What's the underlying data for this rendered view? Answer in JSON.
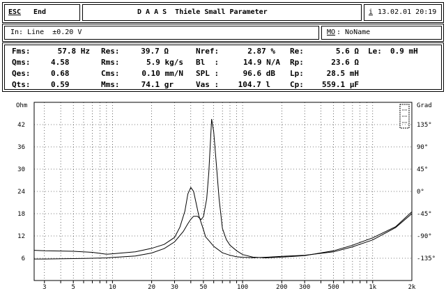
{
  "title_bar": {
    "esc_key": "ESC",
    "end_label": "End",
    "title": "D A A S  Thiele Small Parameter",
    "info_key": "i",
    "datetime": "13.02.01 20:19"
  },
  "input_bar": {
    "input_label": "In: Line  ±0.20 V",
    "mo_key": "MO",
    "mo_value": ": NoName"
  },
  "params": {
    "fms": {
      "label": "Fms:",
      "value": "57.8 Hz"
    },
    "qms": {
      "label": "Qms:",
      "value": "4.58"
    },
    "qes": {
      "label": "Qes:",
      "value": "0.68"
    },
    "qts": {
      "label": "Qts:",
      "value": "0.59"
    },
    "res": {
      "label": "Res:",
      "value": "39.7 Ω"
    },
    "rms": {
      "label": "Rms:",
      "value": "5.9 kg/s"
    },
    "cms": {
      "label": "Cms:",
      "value": "0.10 mm/N"
    },
    "mms": {
      "label": "Mms:",
      "value": "74.1 gr"
    },
    "nref": {
      "label": "Nref:",
      "value": "2.87 %"
    },
    "bl": {
      "label": "Bl  :",
      "value": "14.9 N/A"
    },
    "spl": {
      "label": "SPL :",
      "value": "96.6 dB"
    },
    "vas": {
      "label": "Vas :",
      "value": "104.7 l"
    },
    "re": {
      "label": "Re:",
      "value": "5.6 Ω"
    },
    "rp": {
      "label": "Rp:",
      "value": "23.6 Ω"
    },
    "lp": {
      "label": "Lp:",
      "value": "28.5 mH"
    },
    "cp": {
      "label": "Cp:",
      "value": "559.1 μF"
    },
    "le": {
      "label": "Le:",
      "value": "0.9 mH"
    }
  },
  "chart_data": {
    "type": "line",
    "y_left_label": "Ohm",
    "y_right_label": "Grad",
    "x_scale": "log",
    "xlim": [
      2.5,
      2000
    ],
    "ylim": [
      0,
      48
    ],
    "y2lim": [
      -180,
      180
    ],
    "x_ticks": [
      {
        "v": 3,
        "label": "3"
      },
      {
        "v": 5,
        "label": "5"
      },
      {
        "v": 10,
        "label": "10"
      },
      {
        "v": 20,
        "label": "20"
      },
      {
        "v": 30,
        "label": "30"
      },
      {
        "v": 50,
        "label": "50"
      },
      {
        "v": 100,
        "label": "100"
      },
      {
        "v": 200,
        "label": "200"
      },
      {
        "v": 300,
        "label": "300"
      },
      {
        "v": 500,
        "label": "500"
      },
      {
        "v": 1000,
        "label": "1k"
      },
      {
        "v": 2000,
        "label": "2k"
      }
    ],
    "y_left_ticks": [
      6,
      12,
      18,
      24,
      30,
      36,
      42
    ],
    "y_right_ticks": [
      {
        "v": 135,
        "label": "135°"
      },
      {
        "v": 90,
        "label": "90°"
      },
      {
        "v": 45,
        "label": "45°"
      },
      {
        "v": 0,
        "label": "0°"
      },
      {
        "v": -45,
        "label": "-45°"
      },
      {
        "v": -90,
        "label": "-90°"
      },
      {
        "v": -135,
        "label": "-135°"
      }
    ],
    "grid": true,
    "series": [
      {
        "x": [
          2.5,
          3,
          5,
          7,
          9,
          10,
          15,
          20,
          25,
          30,
          35,
          38,
          40,
          42,
          45,
          48,
          50,
          53,
          55,
          57.8,
          60,
          63,
          66,
          70,
          75,
          80,
          90,
          100,
          120,
          150,
          200,
          300,
          500,
          700,
          1000,
          1500,
          2000
        ],
        "values": [
          5.8,
          5.8,
          5.9,
          6.0,
          6.1,
          6.2,
          6.6,
          7.4,
          8.6,
          10.4,
          13.2,
          15.3,
          16.5,
          17.3,
          17.3,
          16.4,
          17.2,
          22,
          29,
          43.5,
          40,
          31,
          22,
          14,
          11,
          9.5,
          8,
          7.0,
          6.3,
          6.1,
          6.3,
          6.7,
          8.0,
          9.5,
          11.5,
          14.5,
          18.5
        ]
      },
      {
        "x": [
          2.5,
          3,
          5,
          7,
          9,
          10,
          15,
          20,
          25,
          30,
          33,
          36,
          38,
          40,
          42,
          44,
          46,
          50,
          52,
          55,
          60,
          70,
          80,
          90,
          100,
          120,
          150,
          200,
          300,
          500,
          700,
          1000,
          1500,
          2000
        ],
        "values": [
          -119,
          -120,
          -121,
          -123,
          -127,
          -126,
          -122,
          -115,
          -107,
          -93,
          -72,
          -40,
          -5,
          8,
          0,
          -24,
          -48,
          -77,
          -92,
          -99,
          -111,
          -124,
          -129,
          -132,
          -133,
          -134,
          -133,
          -131,
          -129,
          -122,
          -112,
          -98,
          -73,
          -45
        ]
      }
    ]
  }
}
